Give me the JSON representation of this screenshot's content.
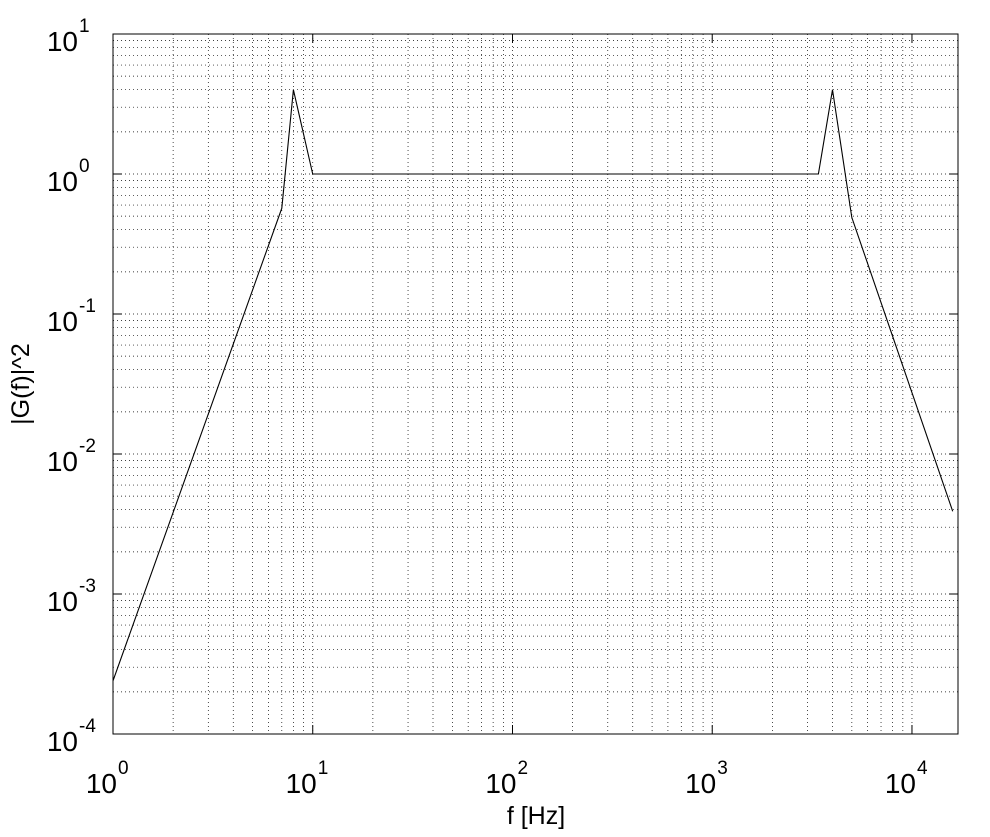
{
  "chart_data": {
    "type": "line",
    "title": "",
    "xlabel": "f [Hz]",
    "ylabel": "|G(f)|^2",
    "xscale": "log",
    "yscale": "log",
    "xlim": [
      1,
      17000
    ],
    "ylim": [
      0.0001,
      10
    ],
    "grid": true,
    "grid_style": "dotted",
    "line_color": "#000000",
    "x_ticks": [
      {
        "value": 1,
        "base": "10",
        "exp": "0"
      },
      {
        "value": 10,
        "base": "10",
        "exp": "1"
      },
      {
        "value": 100,
        "base": "10",
        "exp": "2"
      },
      {
        "value": 1000,
        "base": "10",
        "exp": "3"
      },
      {
        "value": 10000,
        "base": "10",
        "exp": "4"
      }
    ],
    "y_ticks": [
      {
        "value": 10,
        "base": "10",
        "exp": "1"
      },
      {
        "value": 1,
        "base": "10",
        "exp": "0"
      },
      {
        "value": 0.1,
        "base": "10",
        "exp": "-1"
      },
      {
        "value": 0.01,
        "base": "10",
        "exp": "-2"
      },
      {
        "value": 0.001,
        "base": "10",
        "exp": "-3"
      },
      {
        "value": 0.0001,
        "base": "10",
        "exp": "-4"
      }
    ],
    "series": [
      {
        "x": [
          1,
          7,
          8,
          10,
          3400,
          4000,
          5000,
          16000
        ],
        "y": [
          0.00024,
          0.57,
          4.0,
          1.0,
          1.0,
          4.0,
          0.49,
          0.0039
        ]
      }
    ]
  }
}
